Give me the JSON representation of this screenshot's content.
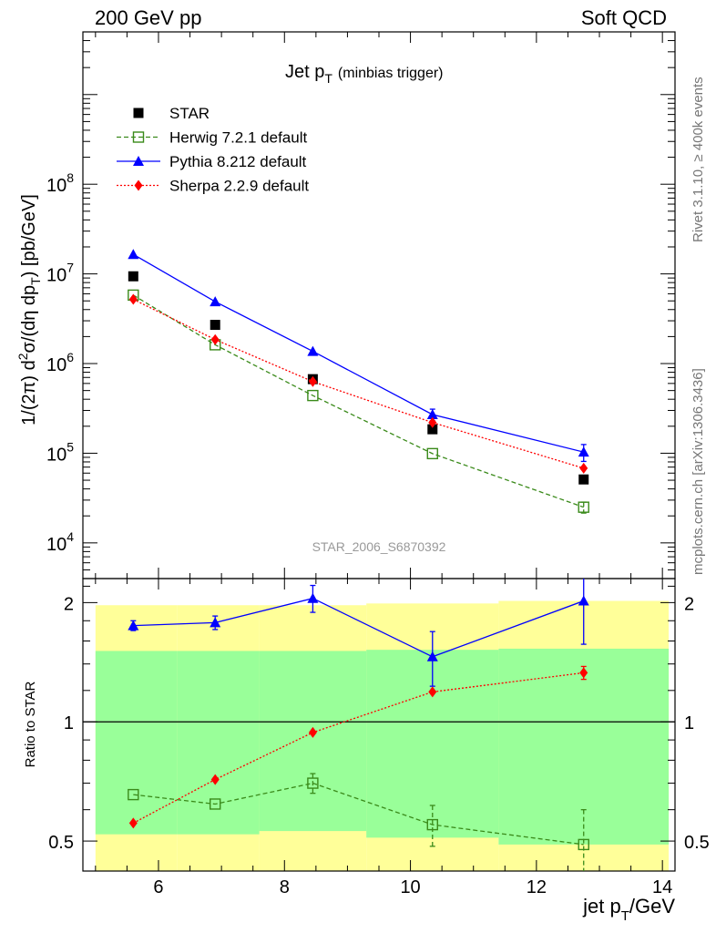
{
  "header": {
    "left": "200 GeV pp",
    "right": "Soft QCD"
  },
  "side": {
    "rivet": "Rivet 3.1.10, ≥ 400k events",
    "mcplots": "mcplots.cern.ch [arXiv:1306.3436]"
  },
  "chart_data": [
    {
      "type": "scatter",
      "title_main": "Jet p",
      "title_sub": "T",
      "title_note": "(minbias trigger)",
      "ylabel": "1/(2π) d²σ/(dη dp_T) [pb/GeV]",
      "yscale": "log",
      "ylim": [
        4000,
        5000000000
      ],
      "xlim": [
        4.8,
        14.2
      ],
      "y_tick_labels": [
        "10^4",
        "10^5",
        "10^6",
        "10^7",
        "10^8"
      ],
      "analysis_id": "STAR_2006_S6870392",
      "legend_placement": "top-left",
      "series": [
        {
          "name": "STAR",
          "color": "#000000",
          "marker": "square-filled",
          "line": "none",
          "x": [
            5.6,
            6.9,
            8.45,
            10.35,
            12.75
          ],
          "y": [
            9400000,
            2700000,
            670000,
            185000,
            51000
          ]
        },
        {
          "name": "Herwig 7.2.1 default",
          "color": "#3a8a1a",
          "marker": "square-open",
          "line": "dashed",
          "x": [
            5.6,
            6.9,
            8.45,
            10.35,
            12.75
          ],
          "y": [
            5800000,
            1620000,
            440000,
            99000,
            25000
          ],
          "err": [
            0,
            0,
            0,
            0,
            3500
          ]
        },
        {
          "name": "Pythia 8.212 default",
          "color": "#0000ff",
          "marker": "triangle-filled",
          "line": "solid",
          "x": [
            5.6,
            6.9,
            8.45,
            10.35,
            12.75
          ],
          "y": [
            16500000,
            4900000,
            1370000,
            270000,
            103000
          ],
          "err": [
            0,
            0,
            0,
            40000,
            22000
          ]
        },
        {
          "name": "Sherpa 2.2.9 default",
          "color": "#ff0000",
          "marker": "diamond-filled",
          "line": "dotted",
          "x": [
            5.6,
            6.9,
            8.45,
            10.35,
            12.75
          ],
          "y": [
            5200000,
            1850000,
            630000,
            220000,
            68000
          ]
        }
      ]
    },
    {
      "type": "scatter",
      "xlabel_main": "jet p",
      "xlabel_sub": "T",
      "xlabel_unit": "/GeV",
      "ylabel": "Ratio to STAR",
      "yscale": "log",
      "ylim": [
        0.42,
        2.3
      ],
      "xlim": [
        4.8,
        14.2
      ],
      "x_ticks": [
        6,
        8,
        10,
        12,
        14
      ],
      "y_ticks": [
        0.5,
        1,
        2
      ],
      "bands": {
        "yellow": [
          {
            "x0": 5.0,
            "x1": 6.3,
            "lo": 0.42,
            "hi": 1.97
          },
          {
            "x0": 6.3,
            "x1": 7.6,
            "lo": 0.42,
            "hi": 1.97
          },
          {
            "x0": 7.6,
            "x1": 9.3,
            "lo": 0.42,
            "hi": 1.97
          },
          {
            "x0": 9.3,
            "x1": 11.4,
            "lo": 0.42,
            "hi": 1.99
          },
          {
            "x0": 11.4,
            "x1": 14.1,
            "lo": 0.42,
            "hi": 2.02
          }
        ],
        "green": [
          {
            "x0": 5.0,
            "x1": 6.3,
            "lo": 0.52,
            "hi": 1.51
          },
          {
            "x0": 6.3,
            "x1": 7.6,
            "lo": 0.52,
            "hi": 1.51
          },
          {
            "x0": 7.6,
            "x1": 9.3,
            "lo": 0.53,
            "hi": 1.51
          },
          {
            "x0": 9.3,
            "x1": 11.4,
            "lo": 0.51,
            "hi": 1.52
          },
          {
            "x0": 11.4,
            "x1": 14.1,
            "lo": 0.49,
            "hi": 1.53
          }
        ]
      },
      "reference_line": 1,
      "series": [
        {
          "name": "Herwig 7.2.1 default",
          "color": "#3a8a1a",
          "marker": "square-open",
          "line": "dashed",
          "x": [
            5.6,
            6.9,
            8.45,
            10.35,
            12.75
          ],
          "y": [
            0.655,
            0.62,
            0.7,
            0.55,
            0.49
          ],
          "err": [
            0,
            0,
            0.04,
            0.065,
            0.11
          ]
        },
        {
          "name": "Pythia 8.212 default",
          "color": "#0000ff",
          "marker": "triangle-filled",
          "line": "solid",
          "x": [
            5.6,
            6.9,
            8.45,
            10.35,
            12.75
          ],
          "y": [
            1.75,
            1.78,
            2.05,
            1.46,
            2.02
          ],
          "err": [
            0.05,
            0.07,
            0.16,
            0.23,
            0.45
          ]
        },
        {
          "name": "Sherpa 2.2.9 default",
          "color": "#ff0000",
          "marker": "diamond-filled",
          "line": "dotted",
          "x": [
            5.6,
            6.9,
            8.45,
            10.35,
            12.75
          ],
          "y": [
            0.555,
            0.715,
            0.94,
            1.19,
            1.33
          ],
          "err": [
            0,
            0,
            0,
            0,
            0.05
          ]
        }
      ]
    }
  ]
}
